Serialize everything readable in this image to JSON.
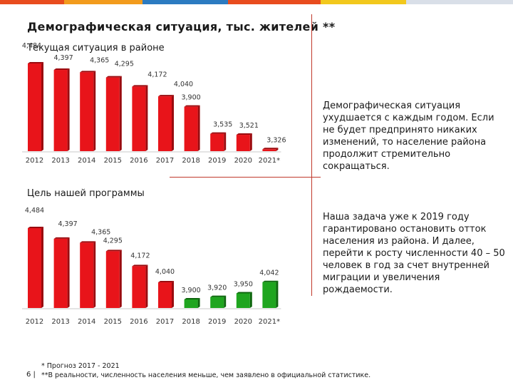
{
  "title": "Демографическая ситуация, тыс. жителей **",
  "charts": [
    {
      "label": "Текущая ситуация в районе",
      "categories": [
        "2012",
        "2013",
        "2014",
        "2015",
        "2016",
        "2017",
        "2018",
        "2019",
        "2020",
        "2021*"
      ],
      "values": [
        4484,
        4397,
        4365,
        4295,
        4172,
        4040,
        3900,
        3535,
        3521,
        3326
      ],
      "value_labels": [
        "4,484",
        "4,397",
        "4,365",
        "4,295",
        "4,172",
        "4,040",
        "3,900",
        "3,535",
        "3,521",
        "3,326"
      ],
      "colors": [
        "red",
        "red",
        "red",
        "red",
        "red",
        "red",
        "red",
        "red",
        "red",
        "red"
      ]
    },
    {
      "label": "Цель нашей программы",
      "categories": [
        "2012",
        "2013",
        "2014",
        "2015",
        "2016",
        "2017",
        "2018",
        "2019",
        "2020",
        "2021*"
      ],
      "values": [
        4484,
        4397,
        4365,
        4295,
        4172,
        4040,
        3900,
        3920,
        3950,
        4042
      ],
      "value_labels": [
        "4,484",
        "4,397",
        "4,365",
        "4,295",
        "4,172",
        "4,040",
        "3,900",
        "3,920",
        "3,950",
        "4,042"
      ],
      "colors": [
        "red",
        "red",
        "red",
        "red",
        "red",
        "red",
        "green",
        "green",
        "green",
        "green"
      ]
    }
  ],
  "chart_data": [
    {
      "type": "bar",
      "categories": [
        "2012",
        "2013",
        "2014",
        "2015",
        "2016",
        "2017",
        "2018",
        "2019",
        "2020",
        "2021*"
      ],
      "values": [
        4484,
        4397,
        4365,
        4295,
        4172,
        4040,
        3900,
        3535,
        3521,
        3326
      ],
      "title": "Текущая ситуация в районе"
    },
    {
      "type": "bar",
      "categories": [
        "2012",
        "2013",
        "2014",
        "2015",
        "2016",
        "2017",
        "2018",
        "2019",
        "2020",
        "2021*"
      ],
      "values": [
        4484,
        4397,
        4365,
        4295,
        4172,
        4040,
        3900,
        3920,
        3950,
        4042
      ],
      "title": "Цель нашей программы"
    }
  ],
  "side_text_1": "Демографическая ситуация ухудшается с каждым годом. Если не будет предпринято никаких изменений, то население района продолжит стремительно сокращаться.",
  "side_text_2": "Наша задача уже к 2019 году гарантировано остановить отток населения из района. И далее, перейти к росту численности 40 – 50 человек в год за счет внутренней миграции и увеличения рождаемости.",
  "footnote_1": "* Прогноз 2017 - 2021",
  "footnote_2": "**В реальности, численность населения меньше, чем заявлено в официальной статистике.",
  "page_number": "6 |",
  "colors": {
    "red": "#e8141a",
    "red_dark": "#9a0b0f",
    "green": "#1fa51f",
    "green_dark": "#0d650d",
    "accent_line": "#c0392b"
  }
}
